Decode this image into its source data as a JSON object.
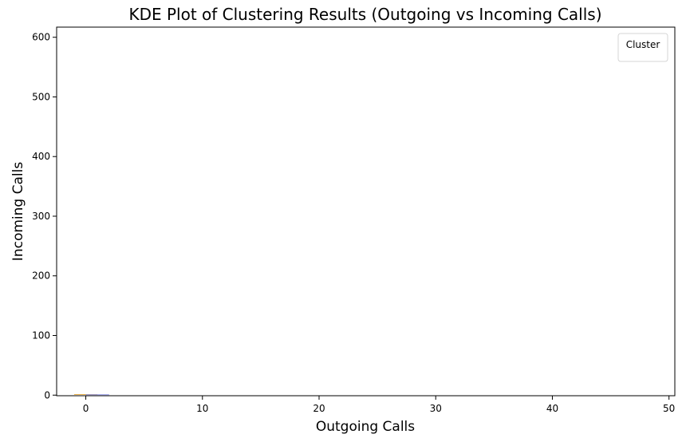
{
  "chart_data": {
    "type": "kde",
    "title": "KDE Plot of Clustering Results (Outgoing vs Incoming Calls)",
    "xlabel": "Outgoing Calls",
    "ylabel": "Incoming Calls",
    "xlim": [
      -2.5,
      50.5
    ],
    "ylim": [
      -1,
      617
    ],
    "xticks": [
      0,
      10,
      20,
      30,
      40,
      50
    ],
    "yticks": [
      0,
      100,
      200,
      300,
      400,
      500,
      600
    ],
    "grid": false,
    "legend": {
      "title": "Cluster",
      "position": "top-right",
      "entries": []
    },
    "series": [
      {
        "x": [
          -1,
          1
        ],
        "y": [
          1,
          1
        ],
        "color": "#e8b04a"
      },
      {
        "x": [
          0,
          2
        ],
        "y": [
          0.6,
          0.6
        ],
        "color": "#8f96e8"
      }
    ]
  }
}
